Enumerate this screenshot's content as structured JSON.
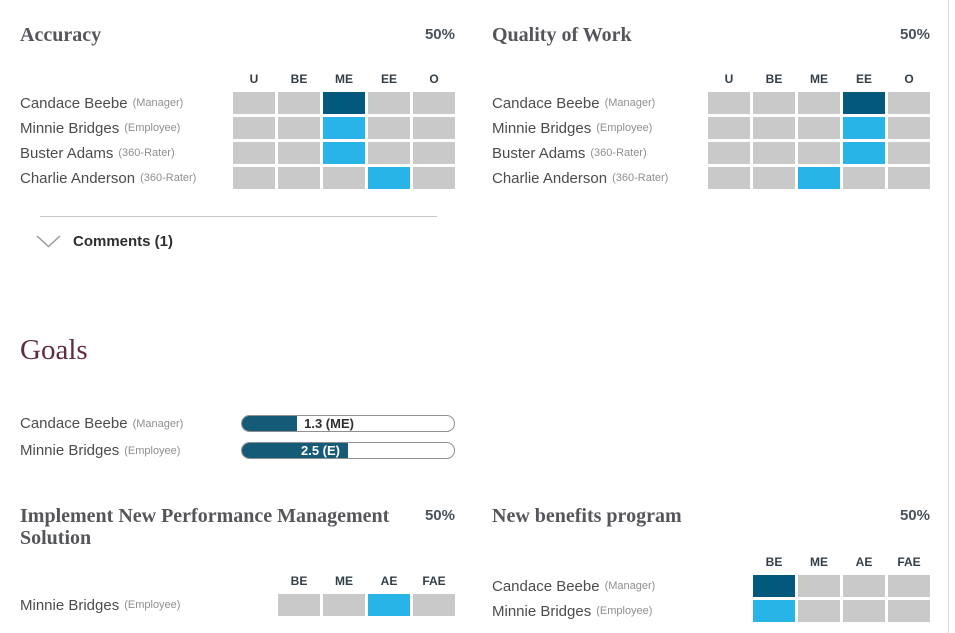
{
  "colors": {
    "rating_dark": "#02597b",
    "rating_light": "#29b4e8",
    "cell_gray": "#c9c9c9",
    "bar_fill": "#155a76",
    "goals_heading": "#5f2b44"
  },
  "sections": {
    "accuracy": {
      "title": "Accuracy",
      "weight": "50%",
      "columns": [
        "U",
        "BE",
        "ME",
        "EE",
        "O"
      ],
      "rows": [
        {
          "name": "Candace Beebe",
          "role": "(Manager)",
          "rating": "ME",
          "tone": "dark"
        },
        {
          "name": "Minnie Bridges",
          "role": "(Employee)",
          "rating": "ME",
          "tone": "light"
        },
        {
          "name": "Buster Adams",
          "role": "(360-Rater)",
          "rating": "ME",
          "tone": "light"
        },
        {
          "name": "Charlie Anderson",
          "role": "(360-Rater)",
          "rating": "EE",
          "tone": "light"
        }
      ],
      "comments_label": "Comments (1)"
    },
    "quality_of_work": {
      "title": "Quality of Work",
      "weight": "50%",
      "columns": [
        "U",
        "BE",
        "ME",
        "EE",
        "O"
      ],
      "rows": [
        {
          "name": "Candace Beebe",
          "role": "(Manager)",
          "rating": "EE",
          "tone": "dark"
        },
        {
          "name": "Minnie Bridges",
          "role": "(Employee)",
          "rating": "EE",
          "tone": "light"
        },
        {
          "name": "Buster Adams",
          "role": "(360-Rater)",
          "rating": "EE",
          "tone": "light"
        },
        {
          "name": "Charlie Anderson",
          "role": "(360-Rater)",
          "rating": "ME",
          "tone": "light"
        }
      ]
    },
    "goals": {
      "title": "Goals",
      "max": 5,
      "rows": [
        {
          "name": "Candace Beebe",
          "role": "(Manager)",
          "value": 1.3,
          "label": "1.3 (ME)",
          "label_inside": false
        },
        {
          "name": "Minnie Bridges",
          "role": "(Employee)",
          "value": 2.5,
          "label": "2.5 (E)",
          "label_inside": true
        }
      ]
    },
    "goal_implement": {
      "title": "Implement New Performance Management Solution",
      "weight": "50%",
      "columns": [
        "BE",
        "ME",
        "AE",
        "FAE"
      ],
      "rows": [
        {
          "name": "Minnie Bridges",
          "role": "(Employee)",
          "rating": "AE",
          "tone": "light"
        }
      ]
    },
    "goal_benefits": {
      "title": "New benefits program",
      "weight": "50%",
      "columns": [
        "BE",
        "ME",
        "AE",
        "FAE"
      ],
      "rows": [
        {
          "name": "Candace Beebe",
          "role": "(Manager)",
          "rating": "BE",
          "tone": "dark"
        },
        {
          "name": "Minnie Bridges",
          "role": "(Employee)",
          "rating": "BE",
          "tone": "light"
        }
      ]
    }
  }
}
